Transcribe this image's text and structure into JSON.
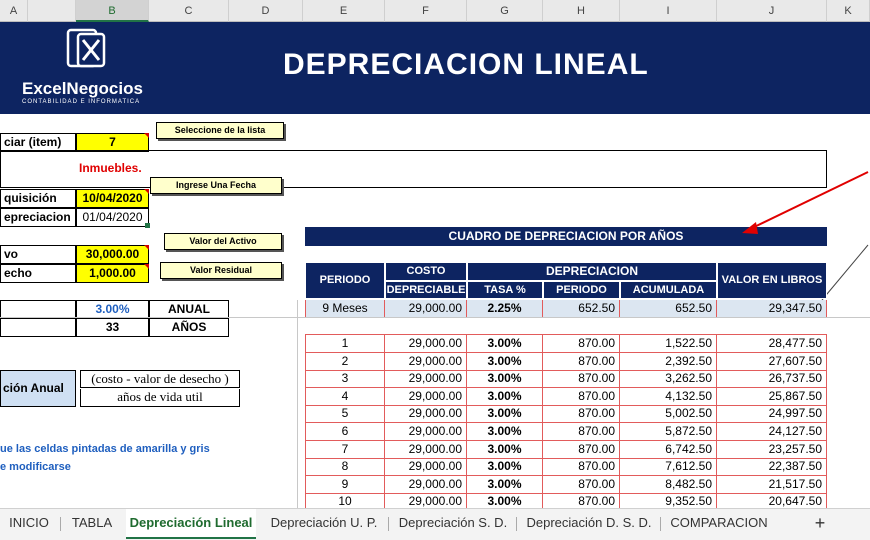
{
  "columns": [
    "A",
    "B",
    "C",
    "D",
    "E",
    "F",
    "G",
    "H",
    "I",
    "J",
    "K"
  ],
  "banner": {
    "title": "DEPRECIACION LINEAL",
    "logo_name": "ExcelNegocios",
    "logo_sub": "CONTABILIDAD E INFORMATICA"
  },
  "form": {
    "item_label": "ciar (item)",
    "item_value": "7",
    "item_desc": "Inmuebles.",
    "fecha_adq_label": "quisición",
    "fecha_adq_value": "10/04/2020",
    "fecha_dep_label": "epreciacion",
    "fecha_dep_value": "01/04/2020",
    "valor_label": "vo",
    "valor_value": "30,000.00",
    "desecho_label": "echo",
    "desecho_value": "1,000.00",
    "tasa_value": "3.00%",
    "tasa_unit": "ANUAL",
    "vida_value": "33",
    "vida_unit": "AÑOS",
    "formula_label": "ción Anual",
    "formula_num": "(costo - valor de desecho )",
    "formula_den": "años de vida util",
    "note_1": "ue las celdas pintadas de amarilla y gris",
    "note_2": "e modificarse"
  },
  "callouts": {
    "lista": "Seleccione de la lista",
    "fecha": "Ingrese Una Fecha",
    "valor": "Valor del Activo",
    "residual": "Valor Residual"
  },
  "table": {
    "title": "CUADRO DE DEPRECIACION POR AÑOS",
    "headers": {
      "periodo": "PERIODO",
      "costo": "COSTO",
      "costo2": "DEPRECIABLE",
      "depreciacion": "DEPRECIACION",
      "tasa": "TASA %",
      "periodo2": "PERIODO",
      "acumulada": "ACUMULADA",
      "libros": "VALOR EN LIBROS"
    },
    "first_row": [
      "9 Meses",
      "29,000.00",
      "2.25%",
      "652.50",
      "652.50",
      "29,347.50"
    ],
    "rows": [
      [
        "1",
        "29,000.00",
        "3.00%",
        "870.00",
        "1,522.50",
        "28,477.50"
      ],
      [
        "2",
        "29,000.00",
        "3.00%",
        "870.00",
        "2,392.50",
        "27,607.50"
      ],
      [
        "3",
        "29,000.00",
        "3.00%",
        "870.00",
        "3,262.50",
        "26,737.50"
      ],
      [
        "4",
        "29,000.00",
        "3.00%",
        "870.00",
        "4,132.50",
        "25,867.50"
      ],
      [
        "5",
        "29,000.00",
        "3.00%",
        "870.00",
        "5,002.50",
        "24,997.50"
      ],
      [
        "6",
        "29,000.00",
        "3.00%",
        "870.00",
        "5,872.50",
        "24,127.50"
      ],
      [
        "7",
        "29,000.00",
        "3.00%",
        "870.00",
        "6,742.50",
        "23,257.50"
      ],
      [
        "8",
        "29,000.00",
        "3.00%",
        "870.00",
        "7,612.50",
        "22,387.50"
      ],
      [
        "9",
        "29,000.00",
        "3.00%",
        "870.00",
        "8,482.50",
        "21,517.50"
      ],
      [
        "10",
        "29,000.00",
        "3.00%",
        "870.00",
        "9,352.50",
        "20,647.50"
      ]
    ]
  },
  "tabs": [
    "INICIO",
    "TABLA",
    "Depreciación Lineal",
    "Depreciación U. P.",
    "Depreciación S. D.",
    "Depreciación D. S. D.",
    "COMPARACION"
  ],
  "add_tab": "+",
  "colors": {
    "navy": "#0d2461",
    "yellow": "#ffff00",
    "red_text": "#e00000",
    "blue_text": "#1f5fbf"
  }
}
